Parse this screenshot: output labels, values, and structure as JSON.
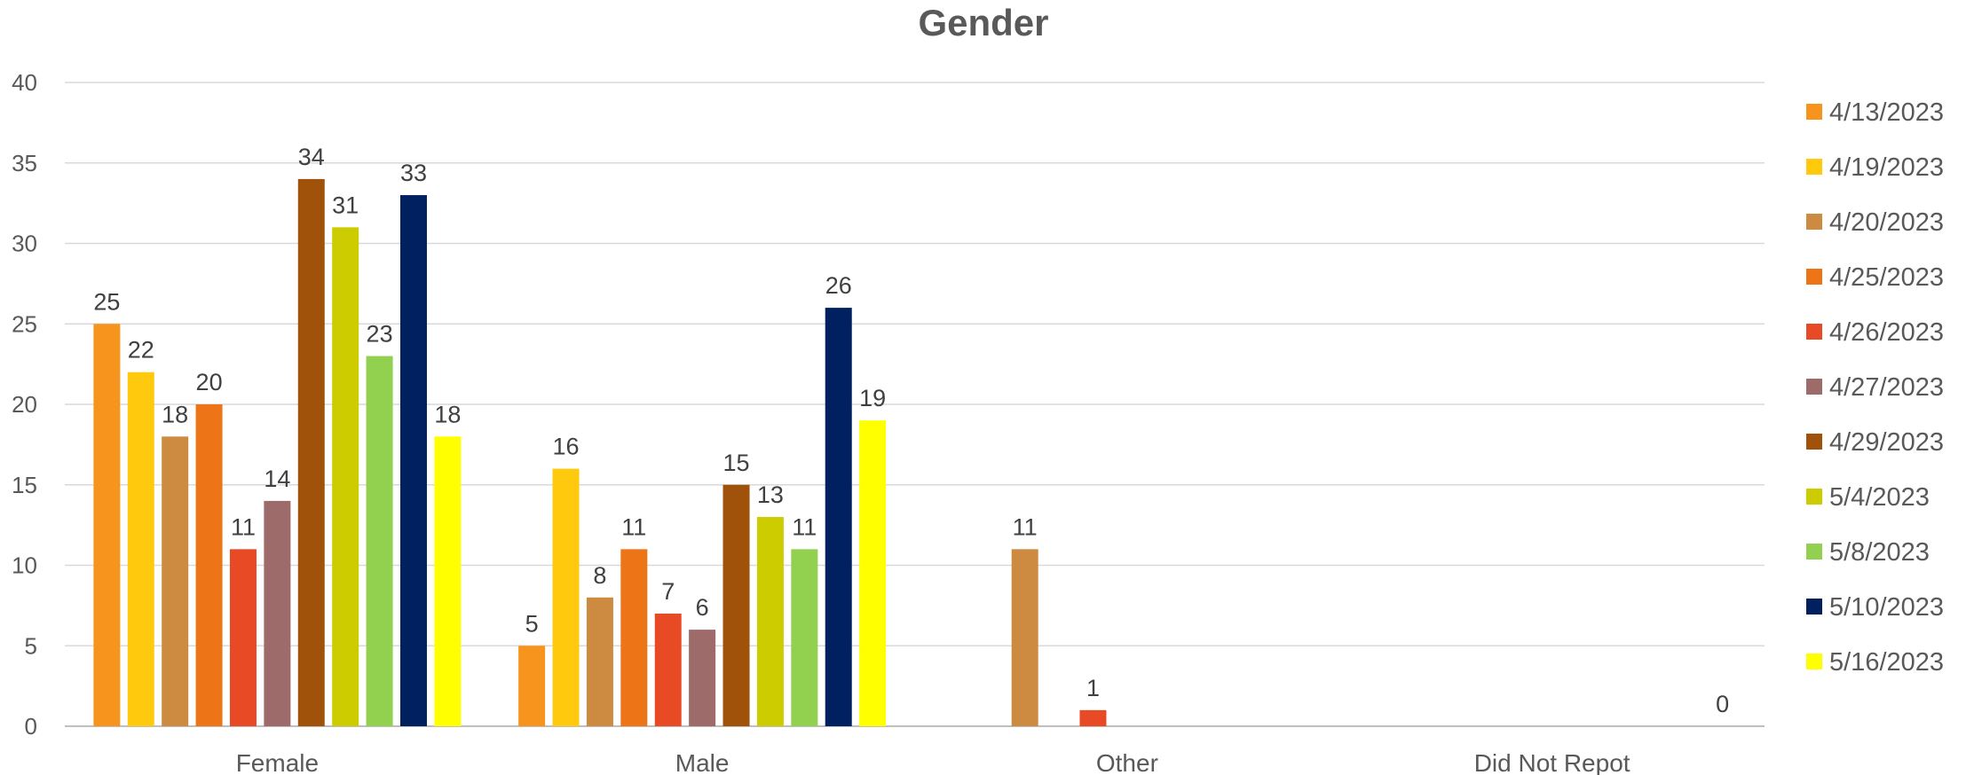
{
  "chart_data": {
    "type": "bar",
    "title": "Gender",
    "xlabel": "",
    "ylabel": "",
    "ylim": [
      0,
      40
    ],
    "yticks": [
      0,
      5,
      10,
      15,
      20,
      25,
      30,
      35,
      40
    ],
    "grid": true,
    "legend_position": "right",
    "categories": [
      "Female",
      "Male",
      "Other",
      "Did Not Repot"
    ],
    "series": [
      {
        "name": "4/13/2023",
        "color": "#F7941D",
        "values": [
          25,
          5,
          null,
          null
        ]
      },
      {
        "name": "4/19/2023",
        "color": "#FFC90E",
        "values": [
          22,
          16,
          null,
          null
        ]
      },
      {
        "name": "4/20/2023",
        "color": "#CD8B42",
        "values": [
          18,
          8,
          11,
          null
        ]
      },
      {
        "name": "4/25/2023",
        "color": "#EE7418",
        "values": [
          20,
          11,
          null,
          null
        ]
      },
      {
        "name": "4/26/2023",
        "color": "#E84A25",
        "values": [
          11,
          7,
          1,
          null
        ]
      },
      {
        "name": "4/27/2023",
        "color": "#9E6B6B",
        "values": [
          14,
          6,
          null,
          null
        ]
      },
      {
        "name": "4/29/2023",
        "color": "#A0520A",
        "values": [
          34,
          15,
          null,
          null
        ]
      },
      {
        "name": "5/4/2023",
        "color": "#CCCC00",
        "values": [
          31,
          13,
          null,
          null
        ]
      },
      {
        "name": "5/8/2023",
        "color": "#92D050",
        "values": [
          23,
          11,
          null,
          null
        ]
      },
      {
        "name": "5/10/2023",
        "color": "#002060",
        "values": [
          33,
          26,
          null,
          null
        ]
      },
      {
        "name": "5/16/2023",
        "color": "#FFFF00",
        "values": [
          18,
          19,
          null,
          0
        ]
      }
    ]
  }
}
